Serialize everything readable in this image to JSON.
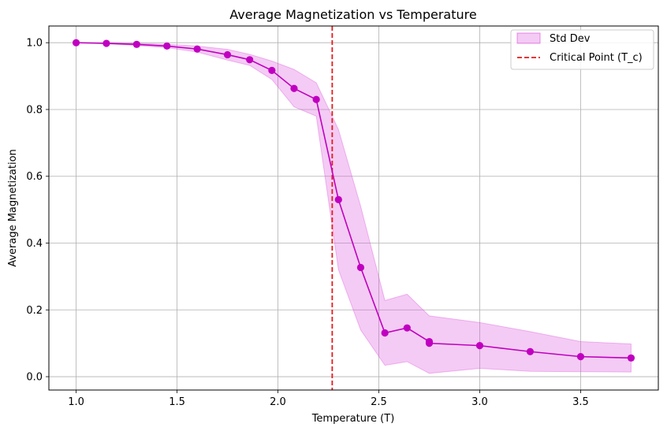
{
  "chart_data": {
    "type": "line",
    "title": "Average Magnetization vs Temperature",
    "xlabel": "Temperature (T)",
    "ylabel": "Average Magnetization",
    "xlim": [
      0.865,
      3.885
    ],
    "ylim": [
      -0.04,
      1.05
    ],
    "x_ticks": [
      1.0,
      1.5,
      2.0,
      2.5,
      3.0,
      3.5
    ],
    "x_tick_labels": [
      "1.0",
      "1.5",
      "2.0",
      "2.5",
      "3.0",
      "3.5"
    ],
    "y_ticks": [
      0.0,
      0.2,
      0.4,
      0.6,
      0.8,
      1.0
    ],
    "y_tick_labels": [
      "0.0",
      "0.2",
      "0.4",
      "0.6",
      "0.8",
      "1.0"
    ],
    "grid": true,
    "legend_position": "top-right",
    "critical_point": {
      "x": 2.269,
      "label": "Critical Point (T_c)",
      "color": "#e41a1c"
    },
    "series": [
      {
        "name": "Average Magnetization",
        "color": "#c000c0",
        "x": [
          1.0,
          1.15,
          1.3,
          1.45,
          1.6,
          1.75,
          1.86,
          1.97,
          2.08,
          2.19,
          2.3,
          2.41,
          2.53,
          2.64,
          2.75,
          2.75,
          3.0,
          3.25,
          3.5,
          3.75
        ],
        "y": [
          1.0,
          0.998,
          0.995,
          0.99,
          0.981,
          0.964,
          0.949,
          0.917,
          0.863,
          0.83,
          0.53,
          0.327,
          0.131,
          0.146,
          0.105,
          0.1,
          0.093,
          0.075,
          0.06,
          0.056
        ]
      }
    ],
    "std_band": {
      "name": "Std Dev",
      "color": "#d946d9",
      "x": [
        1.0,
        1.15,
        1.3,
        1.45,
        1.6,
        1.75,
        1.86,
        1.97,
        2.08,
        2.19,
        2.3,
        2.41,
        2.53,
        2.64,
        2.75,
        3.0,
        3.25,
        3.5,
        3.75
      ],
      "upper": [
        1.0,
        0.999,
        0.998,
        0.995,
        0.99,
        0.98,
        0.965,
        0.945,
        0.92,
        0.88,
        0.74,
        0.51,
        0.228,
        0.247,
        0.182,
        0.162,
        0.135,
        0.105,
        0.098
      ],
      "lower": [
        1.0,
        0.997,
        0.992,
        0.985,
        0.972,
        0.948,
        0.932,
        0.89,
        0.808,
        0.78,
        0.32,
        0.14,
        0.034,
        0.045,
        0.01,
        0.025,
        0.016,
        0.015,
        0.014
      ]
    }
  }
}
